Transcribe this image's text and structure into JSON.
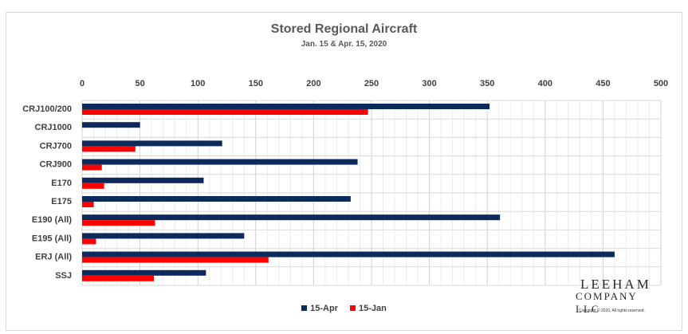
{
  "chart_data": {
    "type": "bar",
    "orientation": "horizontal",
    "title": "Stored Regional Aircraft",
    "subtitle": "Jan. 15 & Apr. 15, 2020",
    "categories": [
      "CRJ100/200",
      "CRJ1000",
      "CRJ700",
      "CRJ900",
      "E170",
      "E175",
      "E190 (All)",
      "E195 (All)",
      "ERJ (All)",
      "SSJ"
    ],
    "series": [
      {
        "name": "15-Apr",
        "color": "#0d2a5c",
        "values": [
          352,
          50,
          121,
          238,
          105,
          232,
          361,
          140,
          460,
          107
        ]
      },
      {
        "name": "15-Jan",
        "color": "#ff0000",
        "values": [
          247,
          0,
          46,
          17,
          19,
          10,
          63,
          12,
          161,
          62
        ]
      }
    ],
    "xlim": [
      0,
      500
    ],
    "xticks": [
      "0",
      "50",
      "100",
      "150",
      "200",
      "250",
      "300",
      "350",
      "400",
      "450",
      "500"
    ],
    "xaxis_position": "top",
    "grid": true,
    "legend_position": "bottom"
  },
  "logo": {
    "line1": "LEEHAM",
    "line2": "COMPANY LLC",
    "copyright": "Copyright © 2020, All rights reserved."
  }
}
